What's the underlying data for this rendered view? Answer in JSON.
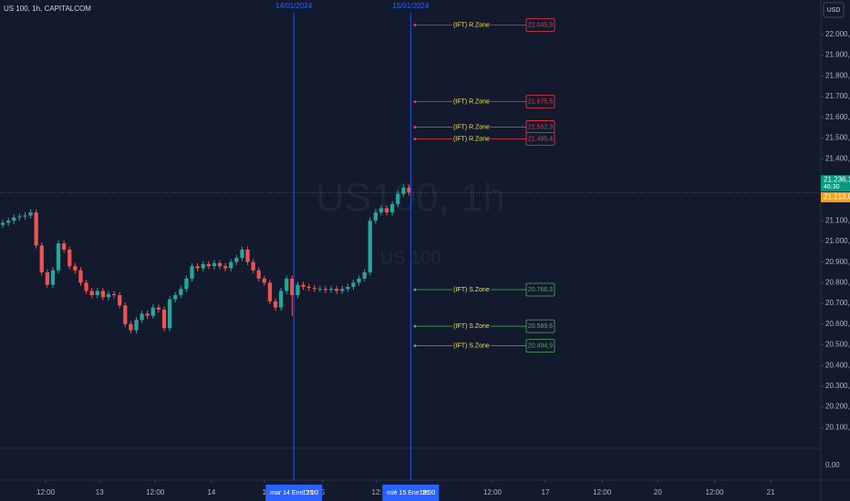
{
  "chart_data": {
    "type": "candlestick",
    "title": "US 100, 1h, CAPITALCOM",
    "currency": "USD",
    "watermark": {
      "symbol": "US100, 1h",
      "name": "US 100"
    },
    "up_color": "#26a69a",
    "down_color": "#ef5350",
    "ylim": [
      20000,
      22167
    ],
    "yticks": [
      {
        "value": 20100,
        "label": "20.100,0"
      },
      {
        "value": 20200,
        "label": "20.200,0"
      },
      {
        "value": 20300,
        "label": "20.300,0"
      },
      {
        "value": 20400,
        "label": "20.400,0"
      },
      {
        "value": 20500,
        "label": "20.500,0"
      },
      {
        "value": 20600,
        "label": "20.600,0"
      },
      {
        "value": 20700,
        "label": "20.700,0"
      },
      {
        "value": 20800,
        "label": "20.800,0"
      },
      {
        "value": 20900,
        "label": "20.900,0"
      },
      {
        "value": 21000,
        "label": "21.000,0"
      },
      {
        "value": 21100,
        "label": "21.100,0"
      },
      {
        "value": 21400,
        "label": "21.400,0"
      },
      {
        "value": 21500,
        "label": "21.500,0"
      },
      {
        "value": 21600,
        "label": "21.600,0"
      },
      {
        "value": 21700,
        "label": "21.700,0"
      },
      {
        "value": 21800,
        "label": "21.800,0"
      },
      {
        "value": 21900,
        "label": "21.900,0"
      },
      {
        "value": 22000,
        "label": "22.000,0"
      }
    ],
    "xlim": [
      -0.5,
      147
    ],
    "xticks": [
      {
        "value": 7.7,
        "label": "12:00"
      },
      {
        "value": 17.4,
        "label": "13"
      },
      {
        "value": 27.4,
        "label": "12:00"
      },
      {
        "value": 37.5,
        "label": "14"
      },
      {
        "value": 47,
        "label": "1"
      },
      {
        "value": 57.5,
        "label": "5"
      },
      {
        "value": 67.2,
        "label": "12:"
      },
      {
        "value": 88,
        "label": "12:00"
      },
      {
        "value": 97.5,
        "label": "17"
      },
      {
        "value": 107.7,
        "label": "12:00"
      },
      {
        "value": 117.7,
        "label": "20"
      },
      {
        "value": 127.9,
        "label": "12:00"
      },
      {
        "value": 138,
        "label": "21"
      }
    ],
    "open": [
      21080,
      21090,
      21100,
      21115,
      21120,
      21125,
      21140,
      20980,
      20850,
      20790,
      20860,
      20990,
      20960,
      20880,
      20860,
      20800,
      20760,
      20740,
      20760,
      20730,
      20745,
      20740,
      20690,
      20600,
      20570,
      20620,
      20650,
      20640,
      20680,
      20670,
      20580,
      20720,
      20740,
      20770,
      20820,
      20880,
      20870,
      20890,
      20880,
      20895,
      20880,
      20870,
      20900,
      20920,
      20960,
      20900,
      20860,
      20820,
      20800,
      20710,
      20680,
      20760,
      20820,
      20740,
      20790,
      20780,
      20775,
      20770,
      20770,
      20765,
      20770,
      20760,
      20770,
      20780,
      20800,
      20820,
      20850,
      21100,
      21140,
      21160,
      21140,
      21180,
      21230,
      21260
    ],
    "high": [
      21105,
      21115,
      21130,
      21135,
      21140,
      21155,
      21155,
      20995,
      20865,
      20875,
      21005,
      21005,
      20975,
      20895,
      20875,
      20815,
      20775,
      20775,
      20775,
      20760,
      20760,
      20755,
      20705,
      20615,
      20635,
      20665,
      20665,
      20695,
      20695,
      20685,
      20735,
      20755,
      20785,
      20835,
      20895,
      20895,
      20905,
      20905,
      20910,
      20910,
      20895,
      20915,
      20935,
      20975,
      20975,
      20915,
      20875,
      20835,
      20815,
      20725,
      20775,
      20835,
      20835,
      20805,
      20805,
      20795,
      20790,
      20785,
      20785,
      20785,
      20785,
      20785,
      20795,
      20815,
      20835,
      20865,
      21115,
      21155,
      21175,
      21175,
      21195,
      21245,
      21275,
      21275
    ],
    "low": [
      21065,
      21075,
      21085,
      21100,
      21105,
      21110,
      20965,
      20835,
      20775,
      20775,
      20845,
      20945,
      20865,
      20845,
      20785,
      20745,
      20725,
      20725,
      20715,
      20715,
      20725,
      20675,
      20585,
      20555,
      20555,
      20605,
      20625,
      20625,
      20655,
      20565,
      20565,
      20705,
      20725,
      20755,
      20805,
      20855,
      20855,
      20865,
      20865,
      20865,
      20855,
      20855,
      20885,
      20905,
      20885,
      20845,
      20805,
      20785,
      20695,
      20665,
      20665,
      20745,
      20640,
      20725,
      20765,
      20760,
      20755,
      20755,
      20750,
      20750,
      20745,
      20745,
      20755,
      20765,
      20785,
      20805,
      20835,
      21085,
      21125,
      21125,
      21125,
      21165,
      21215,
      21221
    ],
    "close": [
      21090,
      21100,
      21115,
      21120,
      21125,
      21140,
      20980,
      20850,
      20790,
      20860,
      20990,
      20960,
      20880,
      20860,
      20800,
      20760,
      20740,
      20760,
      20730,
      20745,
      20740,
      20690,
      20600,
      20570,
      20620,
      20650,
      20640,
      20680,
      20670,
      20580,
      20720,
      20740,
      20770,
      20820,
      20880,
      20870,
      20890,
      20880,
      20895,
      20880,
      20870,
      20900,
      20920,
      20960,
      20900,
      20860,
      20820,
      20800,
      20710,
      20680,
      20760,
      20820,
      20740,
      20790,
      20780,
      20775,
      20770,
      20770,
      20765,
      20770,
      20760,
      20770,
      20780,
      20800,
      20820,
      20850,
      21100,
      21140,
      21160,
      21140,
      21180,
      21230,
      21260,
      21236
    ],
    "markers": [
      {
        "x": 52.3,
        "top_label": "14/01/2024",
        "date_label": "mar 14 Ene '25",
        "time_label": "17:00"
      },
      {
        "x": 73.3,
        "top_label": "15/01/2024",
        "date_label": "mié 15 Ene '25",
        "time_label": "19:00"
      }
    ],
    "zones": [
      {
        "name": "(IFT) R.Zone",
        "value": 22045.9,
        "value_label": "22.045,9",
        "color": "#f23645"
      },
      {
        "name": "(IFT) R.Zone",
        "value": 21675.5,
        "value_label": "21.675,5",
        "color": "#f23645"
      },
      {
        "name": "(IFT) R.Zone",
        "value": 21552.3,
        "value_label": "21.552,3",
        "color": "#f23645"
      },
      {
        "name": "(IFT) R.Zone",
        "value": 21495.4,
        "value_label": "21.495,4",
        "color": "#f23645"
      },
      {
        "name": "(IFT) S.Zone",
        "value": 20766.3,
        "value_label": "20.766,3",
        "color": "#4caf50"
      },
      {
        "name": "(IFT) S.Zone",
        "value": 20589.6,
        "value_label": "20.589,6",
        "color": "#4caf50"
      },
      {
        "name": "(IFT) S.Zone",
        "value": 20494.9,
        "value_label": "20.494,9",
        "color": "#4caf50"
      }
    ],
    "last_price": {
      "value": 21236.1,
      "label": "21.236,1",
      "countdown": "46:30",
      "color": "#089981"
    },
    "bid_price": {
      "value": 21213.0,
      "label": "21.213,0",
      "color": "#f7a21b"
    },
    "indicator_pane": {
      "yticks": [
        {
          "value": 0,
          "label": "0,00"
        }
      ]
    }
  }
}
